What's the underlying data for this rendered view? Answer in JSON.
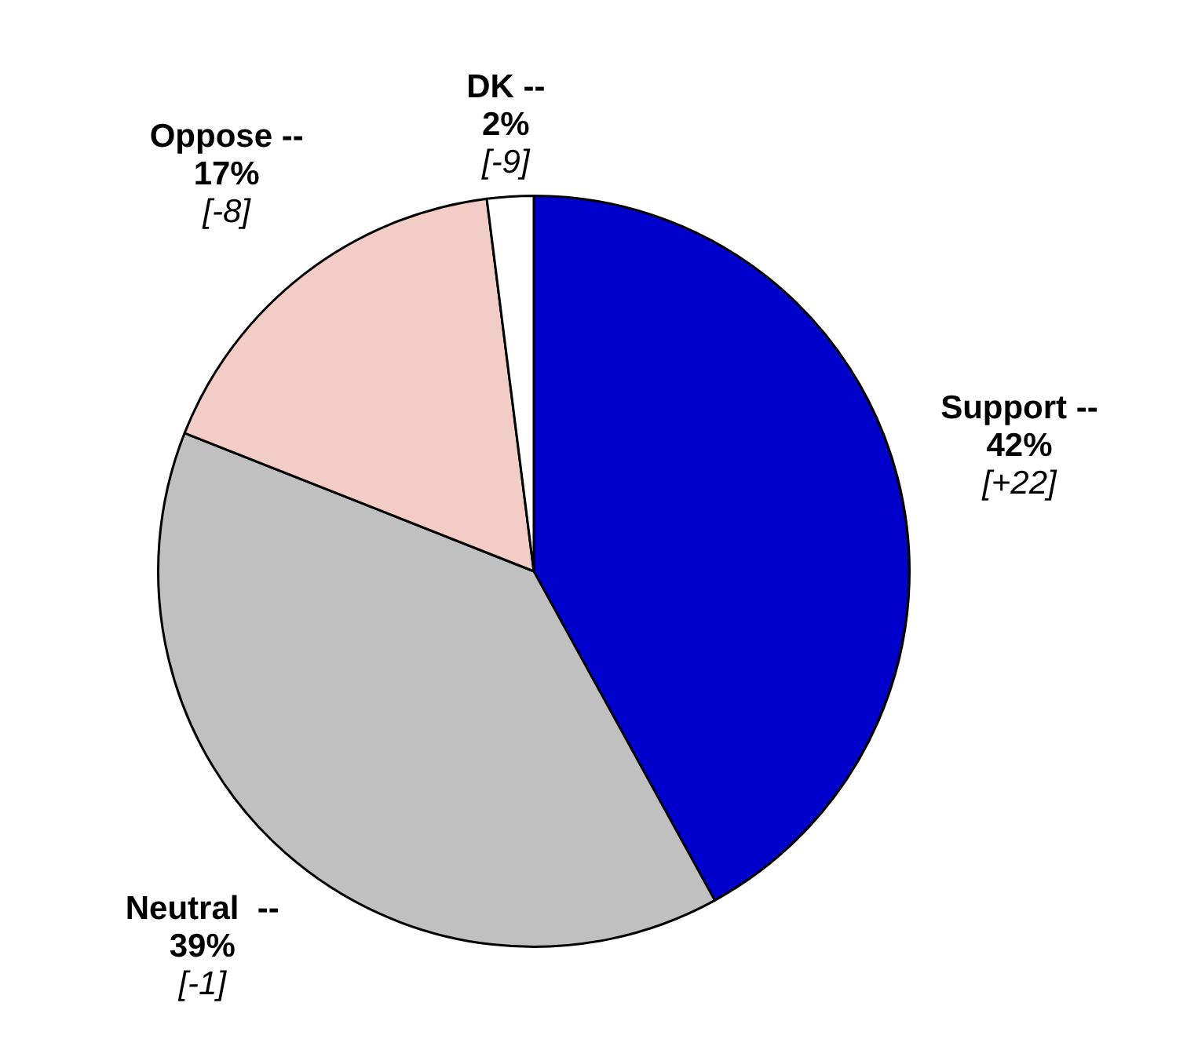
{
  "chart_data": {
    "type": "pie",
    "categories": [
      "Support --",
      "Neutral  --",
      "Oppose --",
      "DK --"
    ],
    "values": [
      42,
      39,
      17,
      2
    ],
    "value_labels": [
      "42%",
      "39%",
      "17%",
      "2%"
    ],
    "colors": [
      "#0000cc",
      "#c0c0c0",
      "#f2cdc6",
      "#ffffff"
    ],
    "annotations": [
      {
        "text": "[+22]",
        "x": "Support --"
      },
      {
        "text": "[-1]",
        "x": "Neutral  --"
      },
      {
        "text": "[-8]",
        "x": "Oppose --"
      },
      {
        "text": "[-9]",
        "x": "DK --"
      }
    ],
    "legend": false
  }
}
